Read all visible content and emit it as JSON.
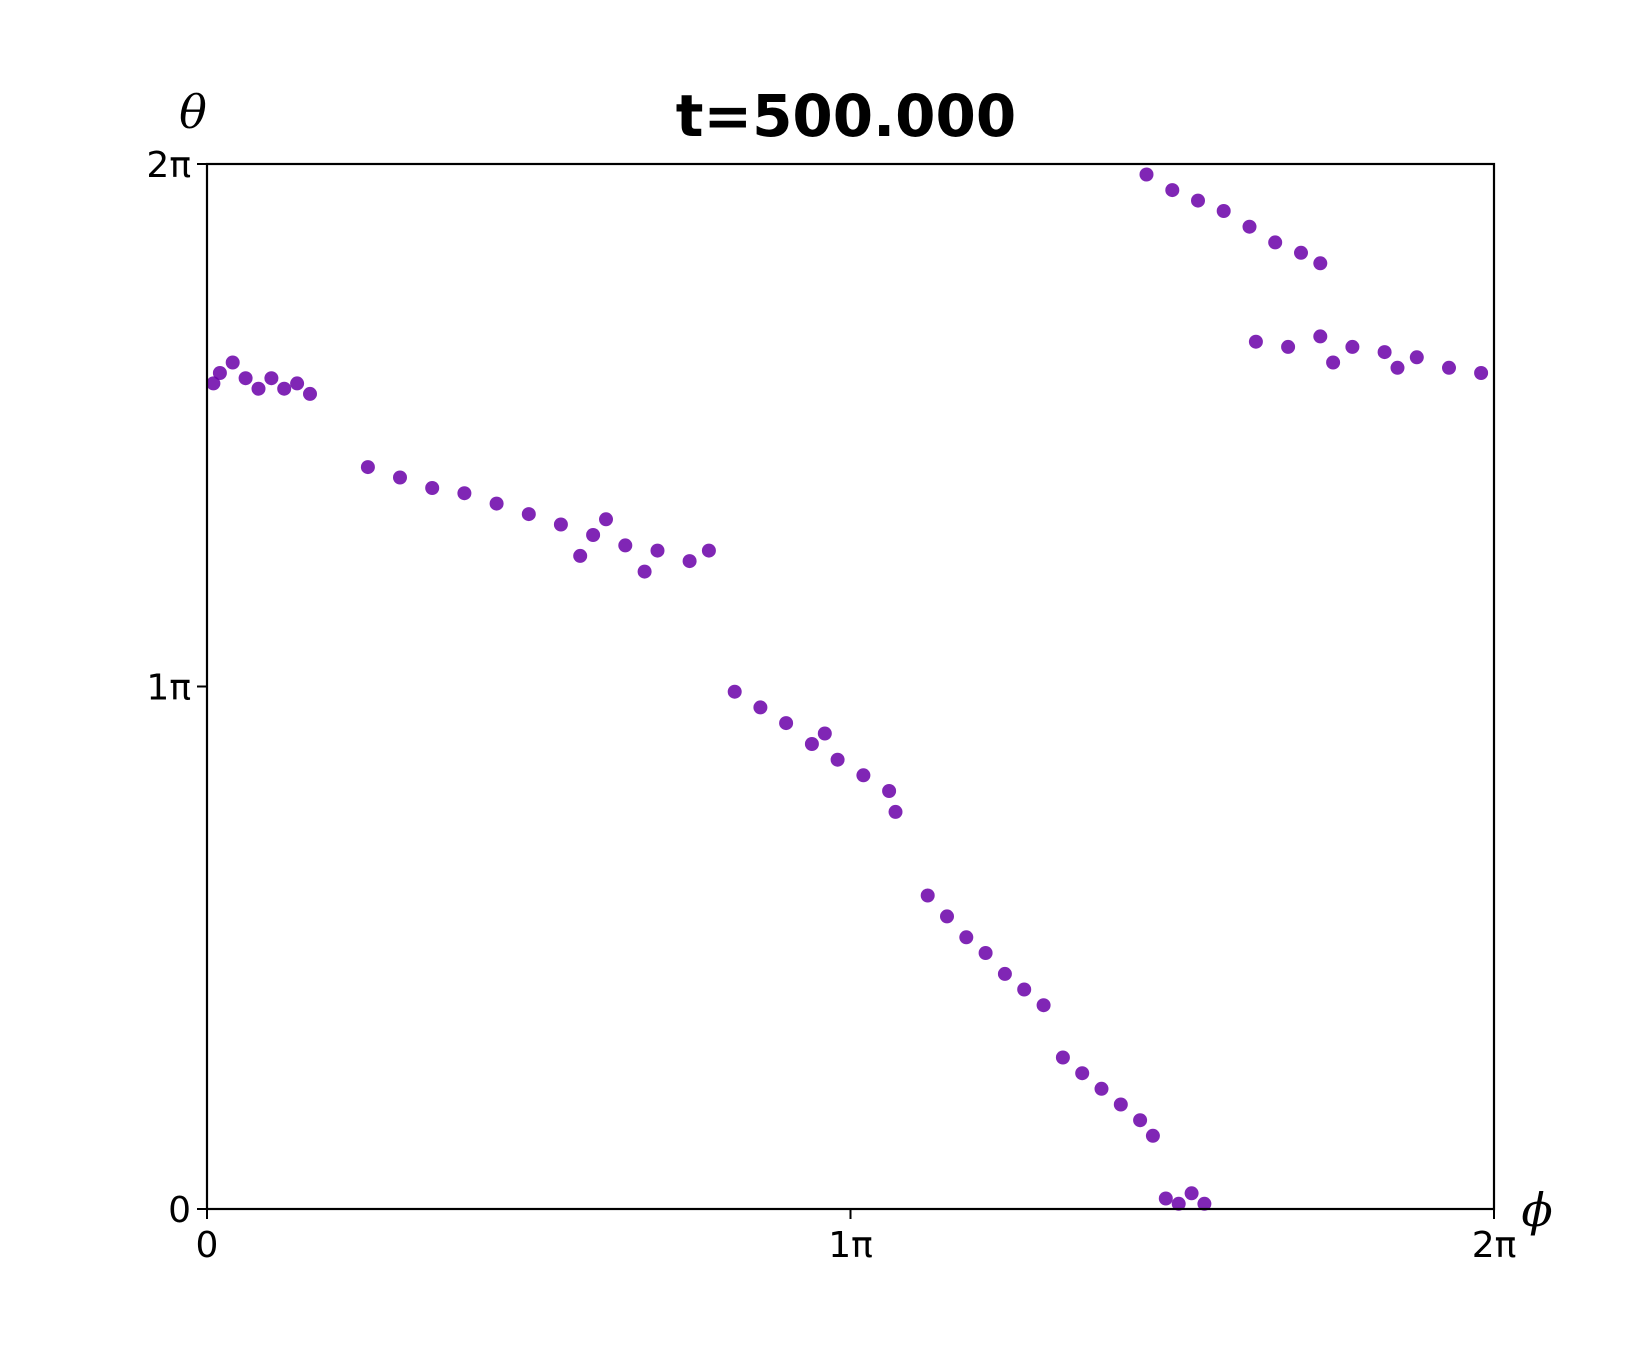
{
  "chart_data": {
    "type": "scatter",
    "title": "t=500.000",
    "xlabel": "ϕ",
    "ylabel": "θ",
    "x_unit": "π",
    "y_unit": "π",
    "xlim": [
      0,
      2
    ],
    "ylim": [
      0,
      2
    ],
    "xticks": [
      {
        "value": 0,
        "label": "0"
      },
      {
        "value": 1,
        "label": "1π"
      },
      {
        "value": 2,
        "label": "2π"
      }
    ],
    "yticks": [
      {
        "value": 0,
        "label": "0"
      },
      {
        "value": 1,
        "label": "1π"
      },
      {
        "value": 2,
        "label": "2π"
      }
    ],
    "grid": false,
    "color": "#6a00a8",
    "series": [
      {
        "values": [
          {
            "x": 0.02,
            "y": 1.6
          },
          {
            "x": 0.04,
            "y": 1.62
          },
          {
            "x": 0.06,
            "y": 1.59
          },
          {
            "x": 0.08,
            "y": 1.57
          },
          {
            "x": 0.1,
            "y": 1.59
          },
          {
            "x": 0.12,
            "y": 1.57
          },
          {
            "x": 0.14,
            "y": 1.58
          },
          {
            "x": 0.16,
            "y": 1.56
          },
          {
            "x": 0.01,
            "y": 1.58
          },
          {
            "x": 0.25,
            "y": 1.42
          },
          {
            "x": 0.3,
            "y": 1.4
          },
          {
            "x": 0.35,
            "y": 1.38
          },
          {
            "x": 0.4,
            "y": 1.37
          },
          {
            "x": 0.45,
            "y": 1.35
          },
          {
            "x": 0.5,
            "y": 1.33
          },
          {
            "x": 0.55,
            "y": 1.31
          },
          {
            "x": 0.6,
            "y": 1.29
          },
          {
            "x": 0.65,
            "y": 1.27
          },
          {
            "x": 0.7,
            "y": 1.26
          },
          {
            "x": 0.75,
            "y": 1.24
          },
          {
            "x": 0.78,
            "y": 1.26
          },
          {
            "x": 0.58,
            "y": 1.25
          },
          {
            "x": 0.68,
            "y": 1.22
          },
          {
            "x": 0.62,
            "y": 1.32
          },
          {
            "x": 0.82,
            "y": 0.99
          },
          {
            "x": 0.86,
            "y": 0.96
          },
          {
            "x": 0.9,
            "y": 0.93
          },
          {
            "x": 0.94,
            "y": 0.89
          },
          {
            "x": 0.98,
            "y": 0.86
          },
          {
            "x": 1.02,
            "y": 0.83
          },
          {
            "x": 1.06,
            "y": 0.8
          },
          {
            "x": 1.07,
            "y": 0.76
          },
          {
            "x": 0.96,
            "y": 0.91
          },
          {
            "x": 1.12,
            "y": 0.6
          },
          {
            "x": 1.15,
            "y": 0.56
          },
          {
            "x": 1.18,
            "y": 0.52
          },
          {
            "x": 1.21,
            "y": 0.49
          },
          {
            "x": 1.24,
            "y": 0.45
          },
          {
            "x": 1.27,
            "y": 0.42
          },
          {
            "x": 1.3,
            "y": 0.39
          },
          {
            "x": 1.33,
            "y": 0.29
          },
          {
            "x": 1.36,
            "y": 0.26
          },
          {
            "x": 1.39,
            "y": 0.23
          },
          {
            "x": 1.42,
            "y": 0.2
          },
          {
            "x": 1.45,
            "y": 0.17
          },
          {
            "x": 1.47,
            "y": 0.14
          },
          {
            "x": 1.49,
            "y": 0.02
          },
          {
            "x": 1.51,
            "y": 0.01
          },
          {
            "x": 1.53,
            "y": 0.03
          },
          {
            "x": 1.55,
            "y": 0.01
          },
          {
            "x": 1.46,
            "y": 1.98
          },
          {
            "x": 1.5,
            "y": 1.95
          },
          {
            "x": 1.54,
            "y": 1.93
          },
          {
            "x": 1.58,
            "y": 1.91
          },
          {
            "x": 1.62,
            "y": 1.88
          },
          {
            "x": 1.66,
            "y": 1.85
          },
          {
            "x": 1.7,
            "y": 1.83
          },
          {
            "x": 1.73,
            "y": 1.81
          },
          {
            "x": 1.63,
            "y": 1.66
          },
          {
            "x": 1.68,
            "y": 1.65
          },
          {
            "x": 1.73,
            "y": 1.67
          },
          {
            "x": 1.78,
            "y": 1.65
          },
          {
            "x": 1.83,
            "y": 1.64
          },
          {
            "x": 1.88,
            "y": 1.63
          },
          {
            "x": 1.93,
            "y": 1.61
          },
          {
            "x": 1.98,
            "y": 1.6
          },
          {
            "x": 1.75,
            "y": 1.62
          },
          {
            "x": 1.85,
            "y": 1.61
          }
        ]
      }
    ]
  }
}
